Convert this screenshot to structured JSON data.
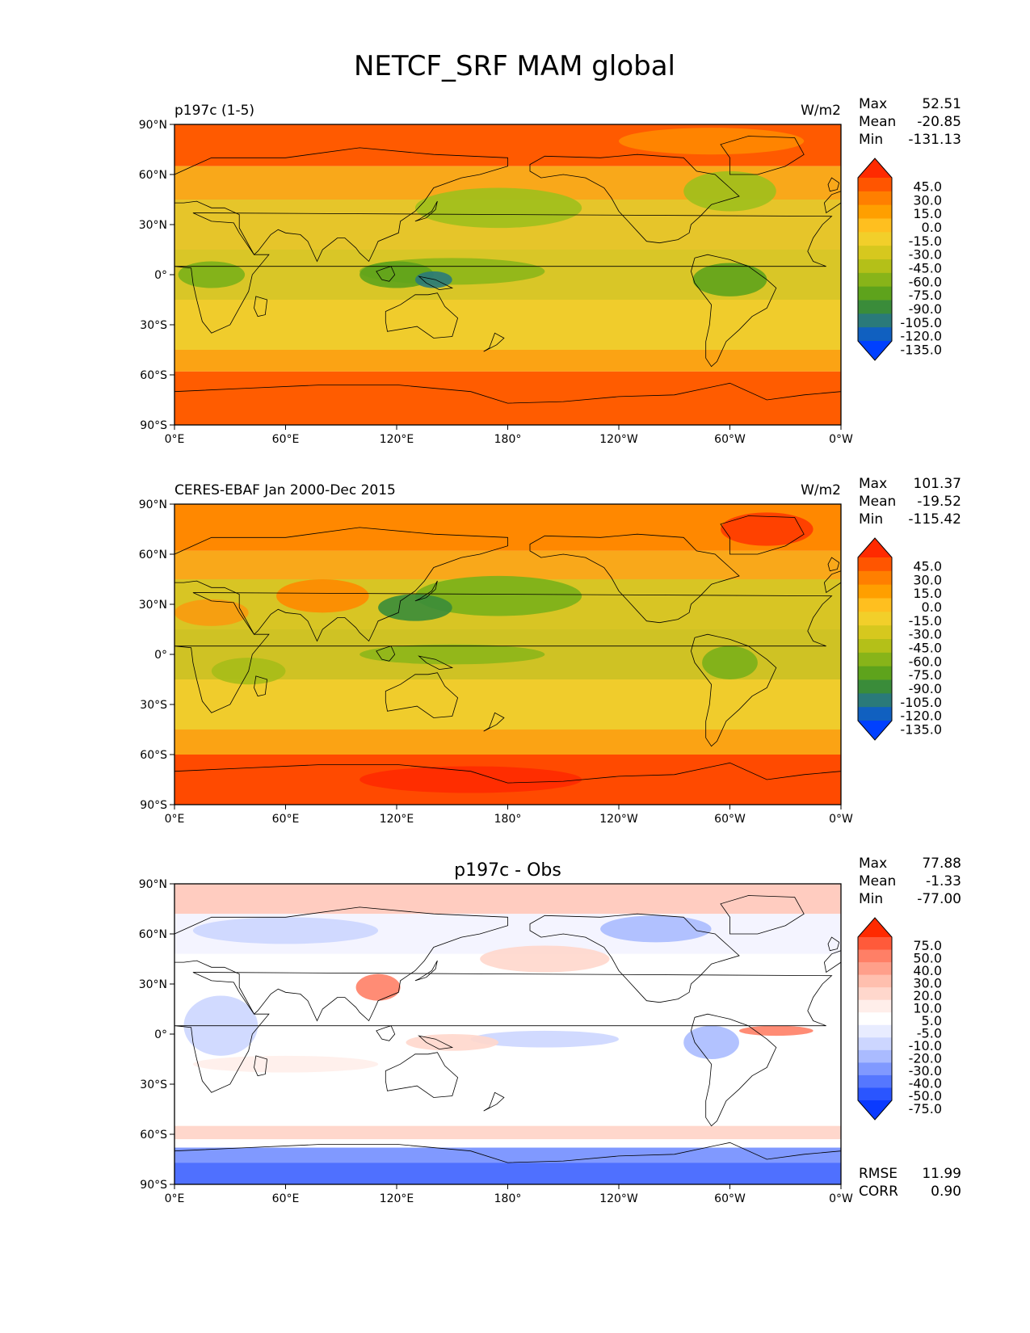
{
  "figure": {
    "title": "NETCF_SRF MAM global"
  },
  "chart_data": [
    {
      "type": "heatmap",
      "title_left": "p197c (1-5)",
      "units": "W/m2",
      "stats": [
        {
          "label": "Max",
          "value": "52.51"
        },
        {
          "label": "Mean",
          "value": "-20.85"
        },
        {
          "label": "Min",
          "value": "-131.13"
        }
      ],
      "colorbar": {
        "levels": [
          "45.0",
          "30.0",
          "15.0",
          "0.0",
          "-15.0",
          "-30.0",
          "-45.0",
          "-60.0",
          "-75.0",
          "-90.0",
          "-105.0",
          "-120.0",
          "-135.0"
        ],
        "colors": [
          "#ff2a00",
          "#ff5500",
          "#ff7f00",
          "#ff9f00",
          "#ffbf1f",
          "#f2cf2a",
          "#d6c81e",
          "#b4c018",
          "#88b419",
          "#5ea31c",
          "#3a8c3a",
          "#2a7a7a",
          "#1060c0",
          "#0040ff"
        ]
      },
      "ticks": {
        "y": [
          "90°N",
          "60°N",
          "30°N",
          "0°",
          "30°S",
          "60°S",
          "90°S"
        ],
        "x": [
          "0°E",
          "60°E",
          "120°E",
          "180°",
          "120°W",
          "60°W",
          "0°W"
        ]
      },
      "xlim": [
        0,
        360
      ],
      "ylim": [
        -90,
        90
      ],
      "bands": [
        {
          "lat_from": 90,
          "lat_to": 65,
          "color": "#ff5a00"
        },
        {
          "lat_from": 65,
          "lat_to": 45,
          "color": "#f9a81a"
        },
        {
          "lat_from": 45,
          "lat_to": 15,
          "color": "#e6c52a"
        },
        {
          "lat_from": 15,
          "lat_to": -15,
          "color": "#d9c627"
        },
        {
          "lat_from": -15,
          "lat_to": -45,
          "color": "#f0cc2c"
        },
        {
          "lat_from": -45,
          "lat_to": -58,
          "color": "#fba314"
        },
        {
          "lat_from": -58,
          "lat_to": -90,
          "color": "#ff5c00"
        }
      ],
      "features": [
        {
          "lon": 175,
          "lat": 40,
          "rlon": 45,
          "rlat": 12,
          "color": "#9fbf1c"
        },
        {
          "lon": 300,
          "lat": 50,
          "rlon": 25,
          "rlat": 12,
          "color": "#9fbf1c"
        },
        {
          "lon": 150,
          "lat": 2,
          "rlon": 50,
          "rlat": 8,
          "color": "#8cb619"
        },
        {
          "lon": 120,
          "lat": 0,
          "rlon": 20,
          "rlat": 8,
          "color": "#5ea31c"
        },
        {
          "lon": 300,
          "lat": -3,
          "rlon": 20,
          "rlat": 10,
          "color": "#5ea31c"
        },
        {
          "lon": 20,
          "lat": 0,
          "rlon": 18,
          "rlat": 8,
          "color": "#7ab01a"
        },
        {
          "lon": 140,
          "lat": -3,
          "rlon": 10,
          "rlat": 5,
          "color": "#2a7a7a"
        },
        {
          "lon": 290,
          "lat": 80,
          "rlon": 50,
          "rlat": 8,
          "color": "#ff8800"
        }
      ]
    },
    {
      "type": "heatmap",
      "title_left": "CERES-EBAF Jan 2000-Dec 2015",
      "units": "W/m2",
      "stats": [
        {
          "label": "Max",
          "value": "101.37"
        },
        {
          "label": "Mean",
          "value": "-19.52"
        },
        {
          "label": "Min",
          "value": "-115.42"
        }
      ],
      "colorbar": {
        "levels": [
          "45.0",
          "30.0",
          "15.0",
          "0.0",
          "-15.0",
          "-30.0",
          "-45.0",
          "-60.0",
          "-75.0",
          "-90.0",
          "-105.0",
          "-120.0",
          "-135.0"
        ],
        "colors": [
          "#ff2a00",
          "#ff5500",
          "#ff7f00",
          "#ff9f00",
          "#ffbf1f",
          "#f2cf2a",
          "#d6c81e",
          "#b4c018",
          "#88b419",
          "#5ea31c",
          "#3a8c3a",
          "#2a7a7a",
          "#1060c0",
          "#0040ff"
        ]
      },
      "ticks": {
        "y": [
          "90°N",
          "60°N",
          "30°N",
          "0°",
          "30°S",
          "60°S",
          "90°S"
        ],
        "x": [
          "0°E",
          "60°E",
          "120°E",
          "180°",
          "120°W",
          "60°W",
          "0°W"
        ]
      },
      "xlim": [
        0,
        360
      ],
      "ylim": [
        -90,
        90
      ],
      "bands": [
        {
          "lat_from": 90,
          "lat_to": 62,
          "color": "#ff8800"
        },
        {
          "lat_from": 62,
          "lat_to": 45,
          "color": "#f9a81a"
        },
        {
          "lat_from": 45,
          "lat_to": 15,
          "color": "#d8c524"
        },
        {
          "lat_from": 15,
          "lat_to": -15,
          "color": "#cfc224"
        },
        {
          "lat_from": -15,
          "lat_to": -45,
          "color": "#f0cc2c"
        },
        {
          "lat_from": -45,
          "lat_to": -60,
          "color": "#fba314"
        },
        {
          "lat_from": -60,
          "lat_to": -90,
          "color": "#ff4a00"
        }
      ],
      "features": [
        {
          "lon": 175,
          "lat": 35,
          "rlon": 45,
          "rlat": 12,
          "color": "#7ab01a"
        },
        {
          "lon": 130,
          "lat": 28,
          "rlon": 20,
          "rlat": 8,
          "color": "#3a8c3a"
        },
        {
          "lon": 80,
          "lat": 35,
          "rlon": 25,
          "rlat": 10,
          "color": "#ff8800"
        },
        {
          "lon": 20,
          "lat": 25,
          "rlon": 20,
          "rlat": 8,
          "color": "#f99a10"
        },
        {
          "lon": 150,
          "lat": 0,
          "rlon": 50,
          "rlat": 6,
          "color": "#8cb619"
        },
        {
          "lon": 300,
          "lat": -5,
          "rlon": 15,
          "rlat": 10,
          "color": "#7ab01a"
        },
        {
          "lon": 40,
          "lat": -10,
          "rlon": 20,
          "rlat": 8,
          "color": "#a6bc18"
        },
        {
          "lon": 320,
          "lat": 75,
          "rlon": 25,
          "rlat": 10,
          "color": "#ff3a00"
        },
        {
          "lon": 160,
          "lat": -75,
          "rlon": 60,
          "rlat": 8,
          "color": "#ff2a00"
        }
      ]
    },
    {
      "type": "heatmap",
      "title_center": "p197c - Obs",
      "stats": [
        {
          "label": "Max",
          "value": "77.88"
        },
        {
          "label": "Mean",
          "value": "-1.33"
        },
        {
          "label": "Min",
          "value": "-77.00"
        }
      ],
      "metrics": [
        {
          "label": "RMSE",
          "value": "11.99"
        },
        {
          "label": "CORR",
          "value": "0.90"
        }
      ],
      "colorbar": {
        "levels": [
          "75.0",
          "50.0",
          "40.0",
          "30.0",
          "20.0",
          "10.0",
          "5.0",
          "-5.0",
          "-10.0",
          "-20.0",
          "-30.0",
          "-40.0",
          "-50.0",
          "-75.0"
        ],
        "colors": [
          "#ff2a00",
          "#ff5a3a",
          "#ff7f66",
          "#ff9f8a",
          "#ffbfae",
          "#ffd7cc",
          "#ffeeea",
          "#ffffff",
          "#e8ecff",
          "#ccd6ff",
          "#aabbff",
          "#8099ff",
          "#5577ff",
          "#2a55ff",
          "#0a3aff"
        ]
      },
      "ticks": {
        "y": [
          "90°N",
          "60°N",
          "30°N",
          "0°",
          "30°S",
          "60°S",
          "90°S"
        ],
        "x": [
          "0°E",
          "60°E",
          "120°E",
          "180°",
          "120°W",
          "60°W",
          "0°W"
        ]
      },
      "xlim": [
        0,
        360
      ],
      "ylim": [
        -90,
        90
      ],
      "bands": [
        {
          "lat_from": 90,
          "lat_to": 72,
          "color": "#ffccc0"
        },
        {
          "lat_from": 72,
          "lat_to": 48,
          "color": "#f4f4ff"
        },
        {
          "lat_from": 48,
          "lat_to": -55,
          "color": "#ffffff"
        },
        {
          "lat_from": -55,
          "lat_to": -63,
          "color": "#ffd7cc"
        },
        {
          "lat_from": -63,
          "lat_to": -68,
          "color": "#ffffff"
        },
        {
          "lat_from": -68,
          "lat_to": -77,
          "color": "#8099ff"
        },
        {
          "lat_from": -77,
          "lat_to": -90,
          "color": "#4f70ff"
        }
      ],
      "features": [
        {
          "lon": 60,
          "lat": 62,
          "rlon": 50,
          "rlat": 8,
          "color": "#ccd6ff"
        },
        {
          "lon": 260,
          "lat": 63,
          "rlon": 30,
          "rlat": 8,
          "color": "#aabbff"
        },
        {
          "lon": 200,
          "lat": 45,
          "rlon": 35,
          "rlat": 8,
          "color": "#ffd7cc"
        },
        {
          "lon": 110,
          "lat": 28,
          "rlon": 12,
          "rlat": 8,
          "color": "#ff7f66"
        },
        {
          "lon": 25,
          "lat": 5,
          "rlon": 20,
          "rlat": 18,
          "color": "#ccd6ff"
        },
        {
          "lon": 200,
          "lat": -3,
          "rlon": 40,
          "rlat": 5,
          "color": "#ccd6ff"
        },
        {
          "lon": 150,
          "lat": -5,
          "rlon": 25,
          "rlat": 5,
          "color": "#ffd7cc"
        },
        {
          "lon": 325,
          "lat": 2,
          "rlon": 20,
          "rlat": 3,
          "color": "#ff7f66"
        },
        {
          "lon": 290,
          "lat": -5,
          "rlon": 15,
          "rlat": 10,
          "color": "#aabbff"
        },
        {
          "lon": 60,
          "lat": -18,
          "rlon": 50,
          "rlat": 5,
          "color": "#ffeeea"
        }
      ]
    }
  ]
}
